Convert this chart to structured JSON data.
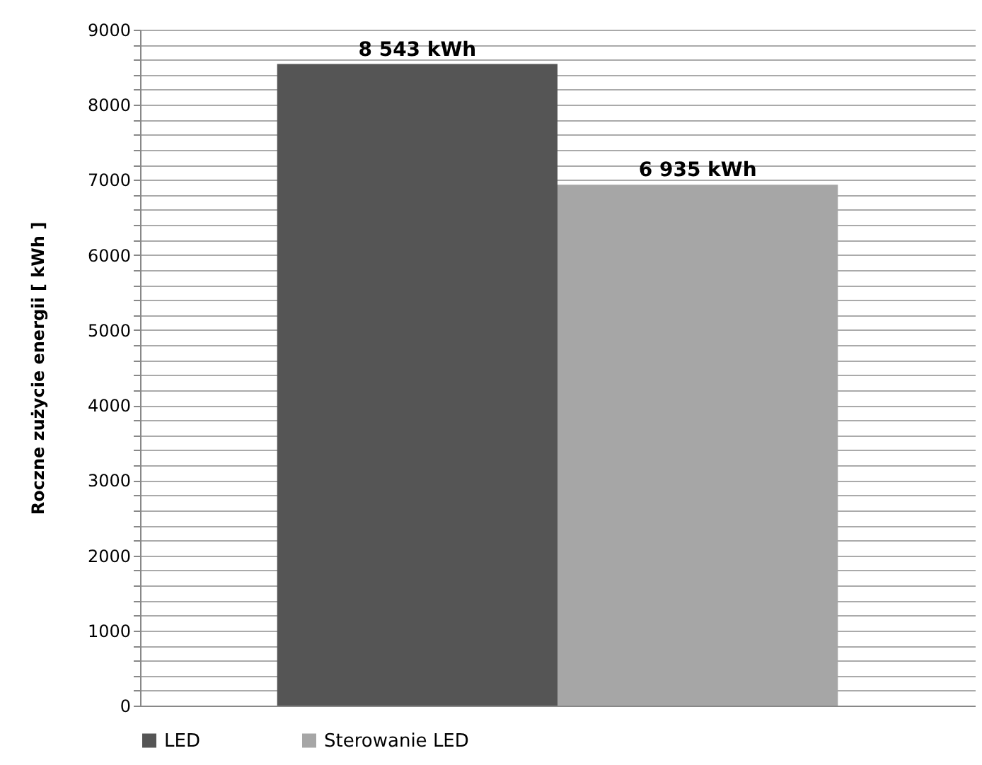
{
  "chart_data": {
    "type": "bar",
    "ylabel": "Roczne zużycie energii  [ kWh ]",
    "categories": [
      null
    ],
    "series": [
      {
        "name": "LED",
        "color": "#555555",
        "values": [
          8543
        ],
        "value_labels": [
          "8 543 kWh"
        ]
      },
      {
        "name": "Sterowanie LED",
        "color": "#a6a6a6",
        "values": [
          6935
        ],
        "value_labels": [
          "6 935 kWh"
        ]
      }
    ],
    "ylim": [
      0,
      9000
    ],
    "yticks": [
      0,
      {
        "value": 200,
        "label": null
      },
      {
        "value": 400,
        "label": null
      },
      {
        "value": 600,
        "label": null
      },
      {
        "value": 800,
        "label": null
      },
      1000,
      {
        "value": 1200,
        "label": null
      },
      {
        "value": 1400,
        "label": null
      },
      {
        "value": 1600,
        "label": null
      },
      {
        "value": 1800,
        "label": null
      },
      2000,
      {
        "value": 2200,
        "label": null
      },
      {
        "value": 2400,
        "label": null
      },
      {
        "value": 2600,
        "label": null
      },
      {
        "value": 2800,
        "label": null
      },
      3000,
      {
        "value": 3200,
        "label": null
      },
      {
        "value": 3400,
        "label": null
      },
      {
        "value": 3600,
        "label": null
      },
      {
        "value": 3800,
        "label": null
      },
      4000,
      {
        "value": 4200,
        "label": null
      },
      {
        "value": 4400,
        "label": null
      },
      {
        "value": 4600,
        "label": null
      },
      {
        "value": 4800,
        "label": null
      },
      5000,
      {
        "value": 5200,
        "label": null
      },
      {
        "value": 5400,
        "label": null
      },
      {
        "value": 5600,
        "label": null
      },
      {
        "value": 5800,
        "label": null
      },
      6000,
      {
        "value": 6200,
        "label": null
      },
      {
        "value": 6400,
        "label": null
      },
      {
        "value": 6600,
        "label": null
      },
      {
        "value": 6800,
        "label": null
      },
      7000,
      {
        "value": 7200,
        "label": null
      },
      {
        "value": 7400,
        "label": null
      },
      {
        "value": 7600,
        "label": null
      },
      {
        "value": 7800,
        "label": null
      },
      8000,
      {
        "value": 8200,
        "label": null
      },
      {
        "value": 8400,
        "label": null
      },
      {
        "value": 8600,
        "label": null
      },
      {
        "value": 8800,
        "label": null
      },
      9000
    ],
    "grid": "y",
    "legend": "bottom"
  }
}
